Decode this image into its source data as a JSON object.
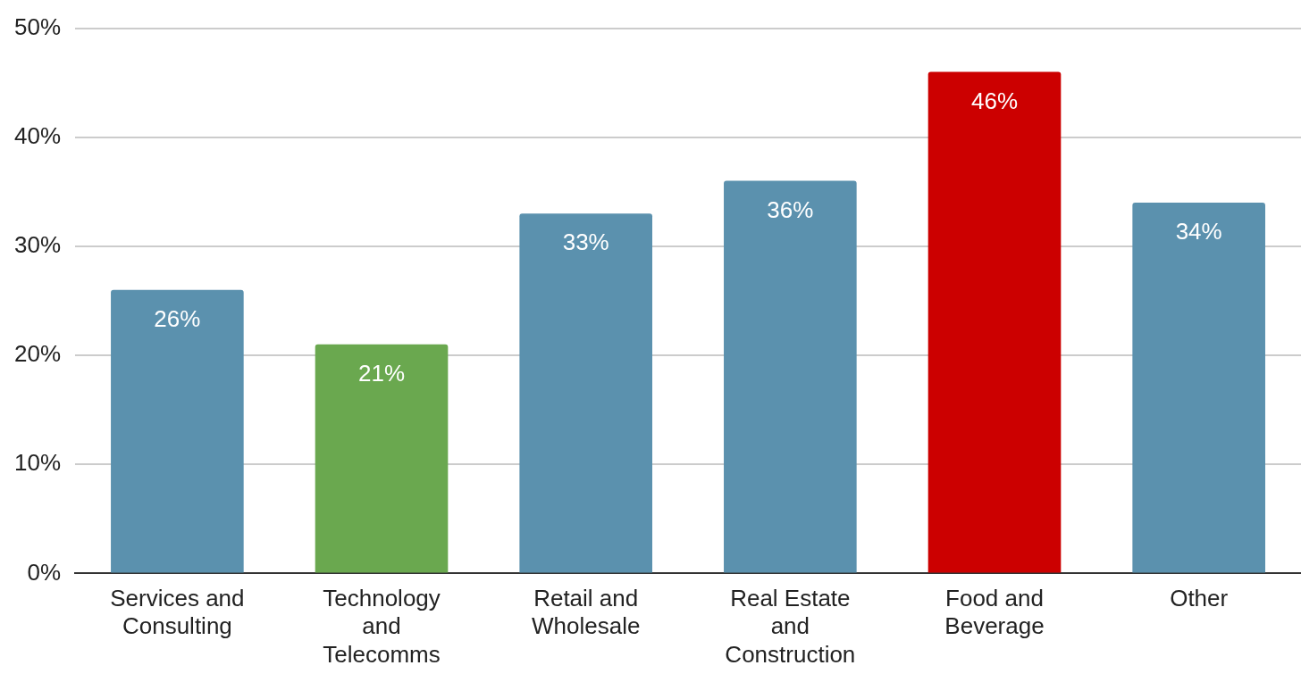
{
  "chart_data": {
    "type": "bar",
    "categories": [
      "Services and Consulting",
      "Technology and Telecomms",
      "Retail and Wholesale",
      "Real Estate and Construction",
      "Food and Beverage",
      "Other"
    ],
    "values": [
      26,
      21,
      33,
      36,
      46,
      34
    ],
    "colors": [
      "#5b91ae",
      "#6aa84f",
      "#5b91ae",
      "#5b91ae",
      "#cc0000",
      "#5b91ae"
    ],
    "value_labels": [
      "26%",
      "21%",
      "33%",
      "36%",
      "46%",
      "34%"
    ],
    "ylim": [
      0,
      50
    ],
    "yticks": [
      {
        "value": 0,
        "label": "0%"
      },
      {
        "value": 10,
        "label": "10%"
      },
      {
        "value": 20,
        "label": "20%"
      },
      {
        "value": 30,
        "label": "30%"
      },
      {
        "value": 40,
        "label": "40%"
      },
      {
        "value": 50,
        "label": "50%"
      }
    ],
    "grid": "y",
    "legend": false
  }
}
